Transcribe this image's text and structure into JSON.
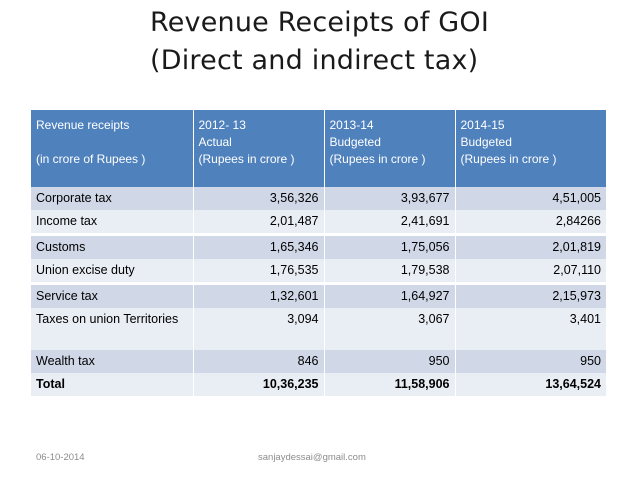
{
  "title": {
    "line1": "Revenue Receipts of GOI",
    "line2": "(Direct and indirect tax)"
  },
  "table": {
    "headers": [
      {
        "line1": "Revenue receipts",
        "line2": "",
        "line3": "(in crore of Rupees )"
      },
      {
        "line1": "2012- 13",
        "line2": "Actual",
        "line3": "(Rupees in crore )"
      },
      {
        "line1": "2013-14",
        "line2": "Budgeted",
        "line3": "(Rupees in crore )"
      },
      {
        "line1": "2014-15",
        "line2": "Budgeted",
        "line3": "(Rupees in crore )"
      }
    ],
    "rows": [
      {
        "label": "Corporate tax",
        "v2012": "3,56,326",
        "v2013": "3,93,677",
        "v2014": "4,51,005"
      },
      {
        "label": "Income tax",
        "v2012": "2,01,487",
        "v2013": "2,41,691",
        "v2014": "2,84266"
      },
      {
        "label": "Customs",
        "v2012": "1,65,346",
        "v2013": "1,75,056",
        "v2014": "2,01,819"
      },
      {
        "label": "Union excise duty",
        "v2012": "1,76,535",
        "v2013": "1,79,538",
        "v2014": "2,07,110"
      },
      {
        "label": "Service tax",
        "v2012": "1,32,601",
        "v2013": "1,64,927",
        "v2014": "2,15,973"
      },
      {
        "label": "Taxes on union Territories",
        "v2012": "3,094",
        "v2013": "3,067",
        "v2014": "3,401"
      },
      {
        "label": "Wealth tax",
        "v2012": "846",
        "v2013": "950",
        "v2014": "950"
      },
      {
        "label": "Total",
        "v2012": "10,36,235",
        "v2013": "11,58,906",
        "v2014": "13,64,524"
      }
    ]
  },
  "footer": {
    "date": "06-10-2014",
    "email": "sanjaydessai@gmail.com"
  },
  "colors": {
    "header_bg": "#4f81bd",
    "row_odd": "#d0d8e8",
    "row_even": "#e9edf4"
  }
}
